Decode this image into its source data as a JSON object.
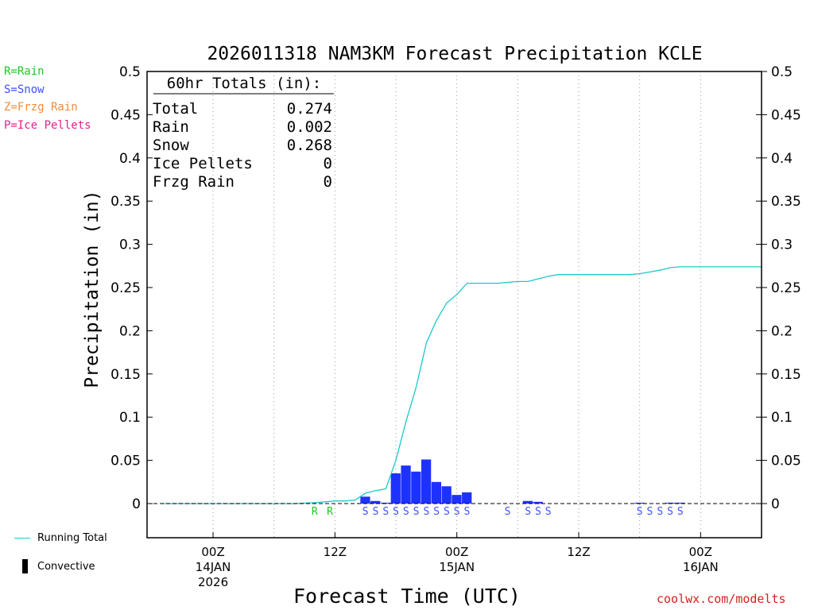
{
  "chart_data": {
    "type": "bar",
    "title": "2026011318 NAM3KM Forecast Precipitation KCLE",
    "xlabel": "Forecast Time (UTC)",
    "ylabel": "Precipitation (in)",
    "ylim": [
      0,
      0.5
    ],
    "y_display_min": -0.04,
    "xlim_hours": [
      -6.5,
      54
    ],
    "grid": "vertical dotted at 6-hour intervals",
    "y_ticks": [
      "0",
      "0.05",
      "0.1",
      "0.15",
      "0.2",
      "0.25",
      "0.3",
      "0.35",
      "0.4",
      "0.45",
      "0.5"
    ],
    "x_ticks": [
      {
        "hour": 0,
        "line1": "00Z",
        "line2": "14JAN",
        "line3": "2026"
      },
      {
        "hour": 12,
        "line1": "12Z",
        "line2": "",
        "line3": ""
      },
      {
        "hour": 24,
        "line1": "00Z",
        "line2": "15JAN",
        "line3": ""
      },
      {
        "hour": 36,
        "line1": "12Z",
        "line2": "",
        "line3": ""
      },
      {
        "hour": 48,
        "line1": "00Z",
        "line2": "16JAN",
        "line3": ""
      }
    ],
    "hourly_bars": {
      "color": "#1e32ff",
      "points": [
        {
          "hour": 15,
          "value": 0.008
        },
        {
          "hour": 16,
          "value": 0.003
        },
        {
          "hour": 17,
          "value": 0.001
        },
        {
          "hour": 18,
          "value": 0.035
        },
        {
          "hour": 19,
          "value": 0.044
        },
        {
          "hour": 20,
          "value": 0.037
        },
        {
          "hour": 21,
          "value": 0.051
        },
        {
          "hour": 22,
          "value": 0.025
        },
        {
          "hour": 23,
          "value": 0.02
        },
        {
          "hour": 24,
          "value": 0.01
        },
        {
          "hour": 25,
          "value": 0.013
        },
        {
          "hour": 31,
          "value": 0.003
        },
        {
          "hour": 32,
          "value": 0.002
        },
        {
          "hour": 42,
          "value": 0.001
        },
        {
          "hour": 45,
          "value": 0.001
        },
        {
          "hour": 46,
          "value": 0.001
        }
      ]
    },
    "running_total": {
      "name": "Running Total",
      "color": "#1ec8c8",
      "points": [
        [
          -5,
          0
        ],
        [
          8,
          0
        ],
        [
          9,
          0.0005
        ],
        [
          10,
          0.001
        ],
        [
          11,
          0.002
        ],
        [
          12,
          0.003
        ],
        [
          13,
          0.003
        ],
        [
          14,
          0.004
        ],
        [
          15,
          0.012
        ],
        [
          16,
          0.015
        ],
        [
          17,
          0.017
        ],
        [
          18,
          0.05
        ],
        [
          19,
          0.095
        ],
        [
          20,
          0.135
        ],
        [
          21,
          0.186
        ],
        [
          22,
          0.212
        ],
        [
          23,
          0.232
        ],
        [
          24,
          0.242
        ],
        [
          25,
          0.255
        ],
        [
          26,
          0.255
        ],
        [
          27,
          0.255
        ],
        [
          28,
          0.255
        ],
        [
          29,
          0.256
        ],
        [
          30,
          0.257
        ],
        [
          31,
          0.257
        ],
        [
          32,
          0.26
        ],
        [
          33,
          0.263
        ],
        [
          34,
          0.265
        ],
        [
          35,
          0.265
        ],
        [
          36,
          0.265
        ],
        [
          37,
          0.265
        ],
        [
          38,
          0.265
        ],
        [
          39,
          0.265
        ],
        [
          40,
          0.265
        ],
        [
          41,
          0.265
        ],
        [
          42,
          0.266
        ],
        [
          43,
          0.268
        ],
        [
          44,
          0.27
        ],
        [
          45,
          0.273
        ],
        [
          46,
          0.274
        ],
        [
          54,
          0.274
        ]
      ]
    },
    "ptype_markers": [
      {
        "hour": 10,
        "code": "R",
        "color": "#1ec81e"
      },
      {
        "hour": 11.5,
        "code": "R",
        "color": "#1ec81e"
      },
      {
        "hour": 15,
        "code": "S",
        "color": "#3c50ff"
      },
      {
        "hour": 16,
        "code": "S",
        "color": "#3c50ff"
      },
      {
        "hour": 17,
        "code": "S",
        "color": "#3c50ff"
      },
      {
        "hour": 18,
        "code": "S",
        "color": "#3c50ff"
      },
      {
        "hour": 19,
        "code": "S",
        "color": "#3c50ff"
      },
      {
        "hour": 20,
        "code": "S",
        "color": "#3c50ff"
      },
      {
        "hour": 21,
        "code": "S",
        "color": "#3c50ff"
      },
      {
        "hour": 22,
        "code": "S",
        "color": "#3c50ff"
      },
      {
        "hour": 23,
        "code": "S",
        "color": "#3c50ff"
      },
      {
        "hour": 24,
        "code": "S",
        "color": "#3c50ff"
      },
      {
        "hour": 25,
        "code": "S",
        "color": "#3c50ff"
      },
      {
        "hour": 29,
        "code": "S",
        "color": "#3c50ff"
      },
      {
        "hour": 31,
        "code": "S",
        "color": "#3c50ff"
      },
      {
        "hour": 32,
        "code": "S",
        "color": "#3c50ff"
      },
      {
        "hour": 33,
        "code": "S",
        "color": "#3c50ff"
      },
      {
        "hour": 42,
        "code": "S",
        "color": "#3c50ff"
      },
      {
        "hour": 43,
        "code": "S",
        "color": "#3c50ff"
      },
      {
        "hour": 44,
        "code": "S",
        "color": "#3c50ff"
      },
      {
        "hour": 45,
        "code": "S",
        "color": "#3c50ff"
      },
      {
        "hour": 46,
        "code": "S",
        "color": "#3c50ff"
      }
    ],
    "totals_box": {
      "heading": "60hr Totals (in):",
      "rows": [
        {
          "label": "Total",
          "value": "0.274"
        },
        {
          "label": "Rain",
          "value": "0.002"
        },
        {
          "label": "Snow",
          "value": "0.268"
        },
        {
          "label": "Ice Pellets",
          "value": "0"
        },
        {
          "label": "Frzg Rain",
          "value": "0"
        }
      ]
    }
  },
  "ptype_legend": [
    {
      "text": "R=Rain",
      "color": "#1ec81e"
    },
    {
      "text": "S=Snow",
      "color": "#3c50ff"
    },
    {
      "text": "Z=Frzg Rain",
      "color": "#f08c3c"
    },
    {
      "text": "P=Ice Pellets",
      "color": "#e61e8c"
    }
  ],
  "series_key": {
    "running_total_label": "Running Total",
    "convective_label": "Convective"
  },
  "credit": "coolwx.com/modelts"
}
